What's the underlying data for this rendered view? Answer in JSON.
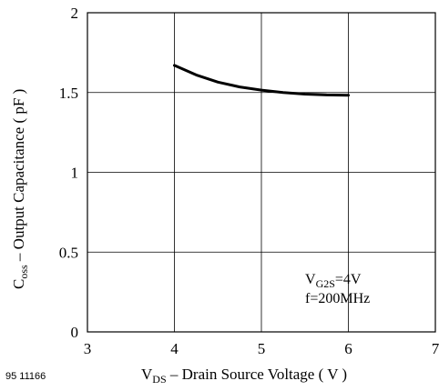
{
  "figure_id": "95 11166",
  "chart_data": {
    "type": "line",
    "xlabel": {
      "main": "V",
      "sub": "DS",
      "rest": " – Drain Source Voltage ( V )"
    },
    "ylabel": {
      "main": "C",
      "sub": "oss",
      "rest": " – Output Capacitance ( pF )"
    },
    "xlim": [
      3,
      7
    ],
    "ylim": [
      0,
      2
    ],
    "xticks": [
      "3",
      "4",
      "5",
      "6",
      "7"
    ],
    "yticks": [
      "0",
      "0.5",
      "1",
      "1.5",
      "2"
    ],
    "grid": true,
    "annotation": {
      "line1": {
        "main": "V",
        "sub": "G2S",
        "rest": "=4V"
      },
      "line2": "f=200MHz"
    },
    "series": [
      {
        "color": "#000000",
        "x": [
          4.0,
          4.25,
          4.5,
          4.75,
          5.0,
          5.25,
          5.5,
          5.75,
          6.0
        ],
        "y": [
          1.67,
          1.61,
          1.565,
          1.535,
          1.515,
          1.5,
          1.49,
          1.485,
          1.483
        ]
      }
    ]
  }
}
